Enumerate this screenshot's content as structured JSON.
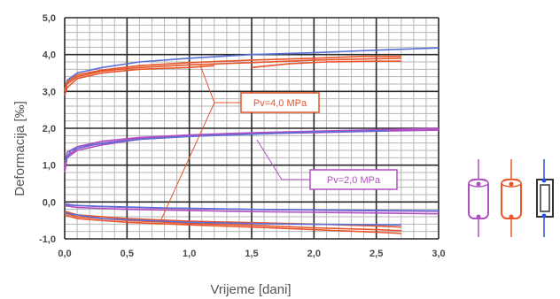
{
  "chart_data": {
    "type": "line",
    "xlabel": "Vrijeme [dani]",
    "ylabel": "Deformacija [‰]",
    "xlim": [
      0,
      3
    ],
    "ylim": [
      -1,
      5
    ],
    "x_ticks": [
      "0,0",
      "0,5",
      "1,0",
      "1,5",
      "2,0",
      "2,5",
      "3,0"
    ],
    "y_ticks": [
      "-1,0",
      "0,0",
      "1,0",
      "2,0",
      "3,0",
      "4,0",
      "5,0"
    ],
    "grid": true,
    "annotations": [
      {
        "text": "Pv=4,0 MPa",
        "color": "#e8552a"
      },
      {
        "text": "Pv=2,0 MPa",
        "color": "#b04fc2"
      }
    ],
    "series": [
      {
        "color": "#5b6fd6",
        "points": [
          [
            0,
            3.0
          ],
          [
            0.02,
            3.3
          ],
          [
            0.1,
            3.5
          ],
          [
            0.3,
            3.65
          ],
          [
            0.6,
            3.8
          ],
          [
            1.0,
            3.9
          ],
          [
            1.5,
            4.0
          ],
          [
            2.0,
            4.05
          ],
          [
            2.5,
            4.12
          ],
          [
            3.0,
            4.18
          ]
        ]
      },
      {
        "color": "#e8552a",
        "points": [
          [
            0,
            2.9
          ],
          [
            0.02,
            3.1
          ],
          [
            0.1,
            3.35
          ],
          [
            0.3,
            3.5
          ],
          [
            0.6,
            3.6
          ],
          [
            1.0,
            3.65
          ],
          [
            1.2,
            3.7
          ]
        ]
      },
      {
        "color": "#e8552a",
        "points": [
          [
            0,
            3.0
          ],
          [
            0.02,
            3.2
          ],
          [
            0.1,
            3.4
          ],
          [
            0.3,
            3.55
          ],
          [
            0.6,
            3.65
          ],
          [
            1.0,
            3.72
          ],
          [
            1.5,
            3.78
          ],
          [
            2.0,
            3.85
          ],
          [
            2.4,
            3.88
          ],
          [
            2.7,
            3.9
          ]
        ]
      },
      {
        "color": "#e8552a",
        "points": [
          [
            0,
            3.05
          ],
          [
            0.02,
            3.25
          ],
          [
            0.1,
            3.45
          ],
          [
            0.3,
            3.58
          ],
          [
            0.6,
            3.7
          ],
          [
            1.0,
            3.78
          ],
          [
            1.5,
            3.85
          ],
          [
            2.0,
            3.9
          ],
          [
            2.4,
            3.95
          ],
          [
            2.7,
            3.95
          ]
        ]
      },
      {
        "color": "#e8552a",
        "points": [
          [
            1.5,
            3.65
          ],
          [
            1.8,
            3.75
          ],
          [
            2.1,
            3.8
          ],
          [
            2.5,
            3.82
          ],
          [
            2.7,
            3.82
          ]
        ]
      },
      {
        "color": "#b04fc2",
        "points": [
          [
            0,
            0.8
          ],
          [
            0.02,
            1.2
          ],
          [
            0.1,
            1.4
          ],
          [
            0.3,
            1.55
          ],
          [
            0.6,
            1.7
          ],
          [
            1.0,
            1.78
          ],
          [
            1.5,
            1.85
          ],
          [
            2.0,
            1.88
          ],
          [
            2.5,
            1.92
          ],
          [
            3.0,
            1.95
          ]
        ]
      },
      {
        "color": "#b04fc2",
        "points": [
          [
            0,
            1.0
          ],
          [
            0.02,
            1.35
          ],
          [
            0.1,
            1.5
          ],
          [
            0.3,
            1.65
          ],
          [
            0.6,
            1.75
          ],
          [
            1.0,
            1.82
          ],
          [
            1.5,
            1.88
          ],
          [
            2.0,
            1.92
          ],
          [
            2.5,
            1.96
          ],
          [
            3.0,
            2.0
          ]
        ]
      },
      {
        "color": "#b04fc2",
        "points": [
          [
            0,
            0.9
          ],
          [
            0.02,
            1.25
          ],
          [
            0.1,
            1.45
          ],
          [
            0.3,
            1.6
          ],
          [
            0.6,
            1.72
          ],
          [
            1.0,
            1.8
          ],
          [
            1.5,
            1.86
          ],
          [
            2.0,
            1.9
          ],
          [
            2.5,
            1.93
          ],
          [
            3.0,
            1.96
          ]
        ]
      },
      {
        "color": "#5b6fd6",
        "points": [
          [
            0,
            1.1
          ],
          [
            0.05,
            1.4
          ],
          [
            0.2,
            1.55
          ],
          [
            0.6,
            1.7
          ],
          [
            1.0,
            1.78
          ],
          [
            1.5,
            1.84
          ],
          [
            2.0,
            1.9
          ],
          [
            2.6,
            1.93
          ]
        ]
      },
      {
        "color": "#b04fc2",
        "points": [
          [
            0,
            -0.05
          ],
          [
            0.1,
            -0.1
          ],
          [
            0.5,
            -0.15
          ],
          [
            1.0,
            -0.18
          ],
          [
            1.5,
            -0.2
          ],
          [
            2.0,
            -0.22
          ],
          [
            2.5,
            -0.24
          ],
          [
            3.0,
            -0.25
          ]
        ]
      },
      {
        "color": "#b04fc2",
        "points": [
          [
            0,
            -0.1
          ],
          [
            0.1,
            -0.15
          ],
          [
            0.5,
            -0.2
          ],
          [
            1.0,
            -0.23
          ],
          [
            1.5,
            -0.26
          ],
          [
            2.0,
            -0.28
          ],
          [
            2.5,
            -0.3
          ],
          [
            3.0,
            -0.32
          ]
        ]
      },
      {
        "color": "#5b6fd6",
        "points": [
          [
            0,
            -0.08
          ],
          [
            0.3,
            -0.12
          ],
          [
            0.8,
            -0.16
          ],
          [
            1.5,
            -0.2
          ],
          [
            2.2,
            -0.22
          ],
          [
            3.0,
            -0.24
          ]
        ]
      },
      {
        "color": "#e8552a",
        "points": [
          [
            0,
            -0.35
          ],
          [
            0.1,
            -0.45
          ],
          [
            0.5,
            -0.55
          ],
          [
            1.0,
            -0.62
          ],
          [
            1.5,
            -0.68
          ],
          [
            2.0,
            -0.75
          ],
          [
            2.5,
            -0.82
          ],
          [
            2.7,
            -0.85
          ]
        ]
      },
      {
        "color": "#e8552a",
        "points": [
          [
            0,
            -0.3
          ],
          [
            0.1,
            -0.4
          ],
          [
            0.5,
            -0.5
          ],
          [
            1.0,
            -0.58
          ],
          [
            1.5,
            -0.63
          ],
          [
            2.0,
            -0.7
          ],
          [
            2.5,
            -0.75
          ],
          [
            2.7,
            -0.78
          ]
        ]
      },
      {
        "color": "#e8552a",
        "points": [
          [
            0,
            -0.25
          ],
          [
            0.1,
            -0.35
          ],
          [
            0.5,
            -0.45
          ],
          [
            1.0,
            -0.52
          ],
          [
            1.5,
            -0.56
          ],
          [
            2.0,
            -0.6
          ],
          [
            2.5,
            -0.65
          ],
          [
            2.7,
            -0.68
          ]
        ]
      },
      {
        "color": "#5b6fd6",
        "points": [
          [
            0,
            -0.3
          ],
          [
            0.3,
            -0.45
          ],
          [
            1.0,
            -0.55
          ],
          [
            1.8,
            -0.6
          ],
          [
            2.7,
            -0.62
          ]
        ]
      }
    ]
  },
  "specimens": [
    {
      "icon": "purple-specimen-icon",
      "color": "#b04fc2"
    },
    {
      "icon": "orange-specimen-icon",
      "color": "#e8552a"
    },
    {
      "icon": "gauge-specimen-icon",
      "color": "#333333"
    }
  ]
}
